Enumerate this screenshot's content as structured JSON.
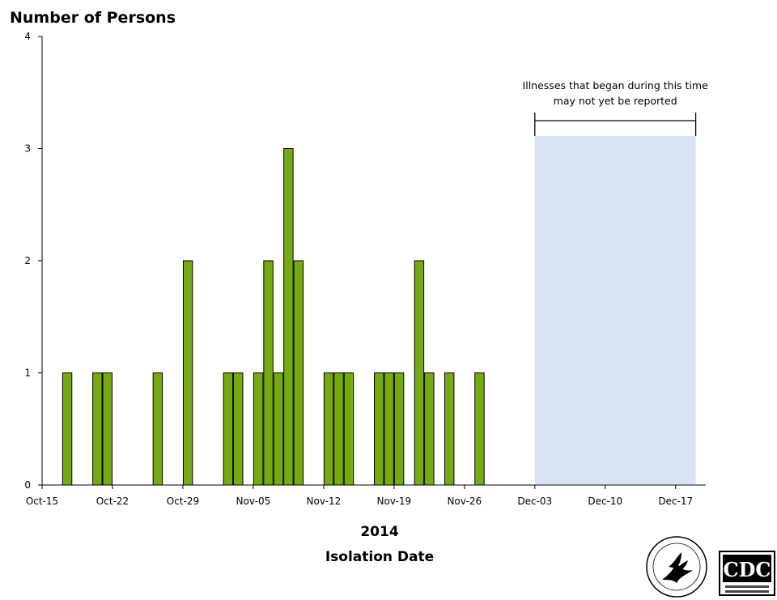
{
  "chart_data": {
    "type": "bar",
    "ylabel": "Number of Persons",
    "xlabel_year": "2014",
    "xlabel": "Isolation Date",
    "ylim": [
      0,
      4
    ],
    "yticks": [
      0,
      1,
      2,
      3,
      4
    ],
    "date_start": "2014-10-15",
    "date_end": "2014-12-20",
    "xticks": [
      {
        "date": "2014-10-15",
        "label": "Oct-15"
      },
      {
        "date": "2014-10-22",
        "label": "Oct-22"
      },
      {
        "date": "2014-10-29",
        "label": "Oct-29"
      },
      {
        "date": "2014-11-05",
        "label": "Nov-05"
      },
      {
        "date": "2014-11-12",
        "label": "Nov-12"
      },
      {
        "date": "2014-11-19",
        "label": "Nov-19"
      },
      {
        "date": "2014-11-26",
        "label": "Nov-26"
      },
      {
        "date": "2014-12-03",
        "label": "Dec-03"
      },
      {
        "date": "2014-12-10",
        "label": "Dec-10"
      },
      {
        "date": "2014-12-17",
        "label": "Dec-17"
      }
    ],
    "bars": [
      {
        "date": "2014-10-17",
        "value": 1
      },
      {
        "date": "2014-10-20",
        "value": 1
      },
      {
        "date": "2014-10-21",
        "value": 1
      },
      {
        "date": "2014-10-26",
        "value": 1
      },
      {
        "date": "2014-10-29",
        "value": 2
      },
      {
        "date": "2014-11-02",
        "value": 1
      },
      {
        "date": "2014-11-03",
        "value": 1
      },
      {
        "date": "2014-11-05",
        "value": 1
      },
      {
        "date": "2014-11-06",
        "value": 2
      },
      {
        "date": "2014-11-07",
        "value": 1
      },
      {
        "date": "2014-11-08",
        "value": 3
      },
      {
        "date": "2014-11-09",
        "value": 2
      },
      {
        "date": "2014-11-12",
        "value": 1
      },
      {
        "date": "2014-11-13",
        "value": 1
      },
      {
        "date": "2014-11-14",
        "value": 1
      },
      {
        "date": "2014-11-17",
        "value": 1
      },
      {
        "date": "2014-11-18",
        "value": 1
      },
      {
        "date": "2014-11-19",
        "value": 1
      },
      {
        "date": "2014-11-21",
        "value": 2
      },
      {
        "date": "2014-11-22",
        "value": 1
      },
      {
        "date": "2014-11-24",
        "value": 1
      },
      {
        "date": "2014-11-27",
        "value": 1
      }
    ],
    "bar_color": "#77aa11",
    "shaded_region": {
      "start": "2014-12-03",
      "end": "2014-12-19",
      "color": "#d9e3f2",
      "label_line1": "Illnesses that began during this time",
      "label_line2": "may not yet be reported"
    },
    "grid": false
  },
  "logos": {
    "cdc_text": "CDC"
  }
}
